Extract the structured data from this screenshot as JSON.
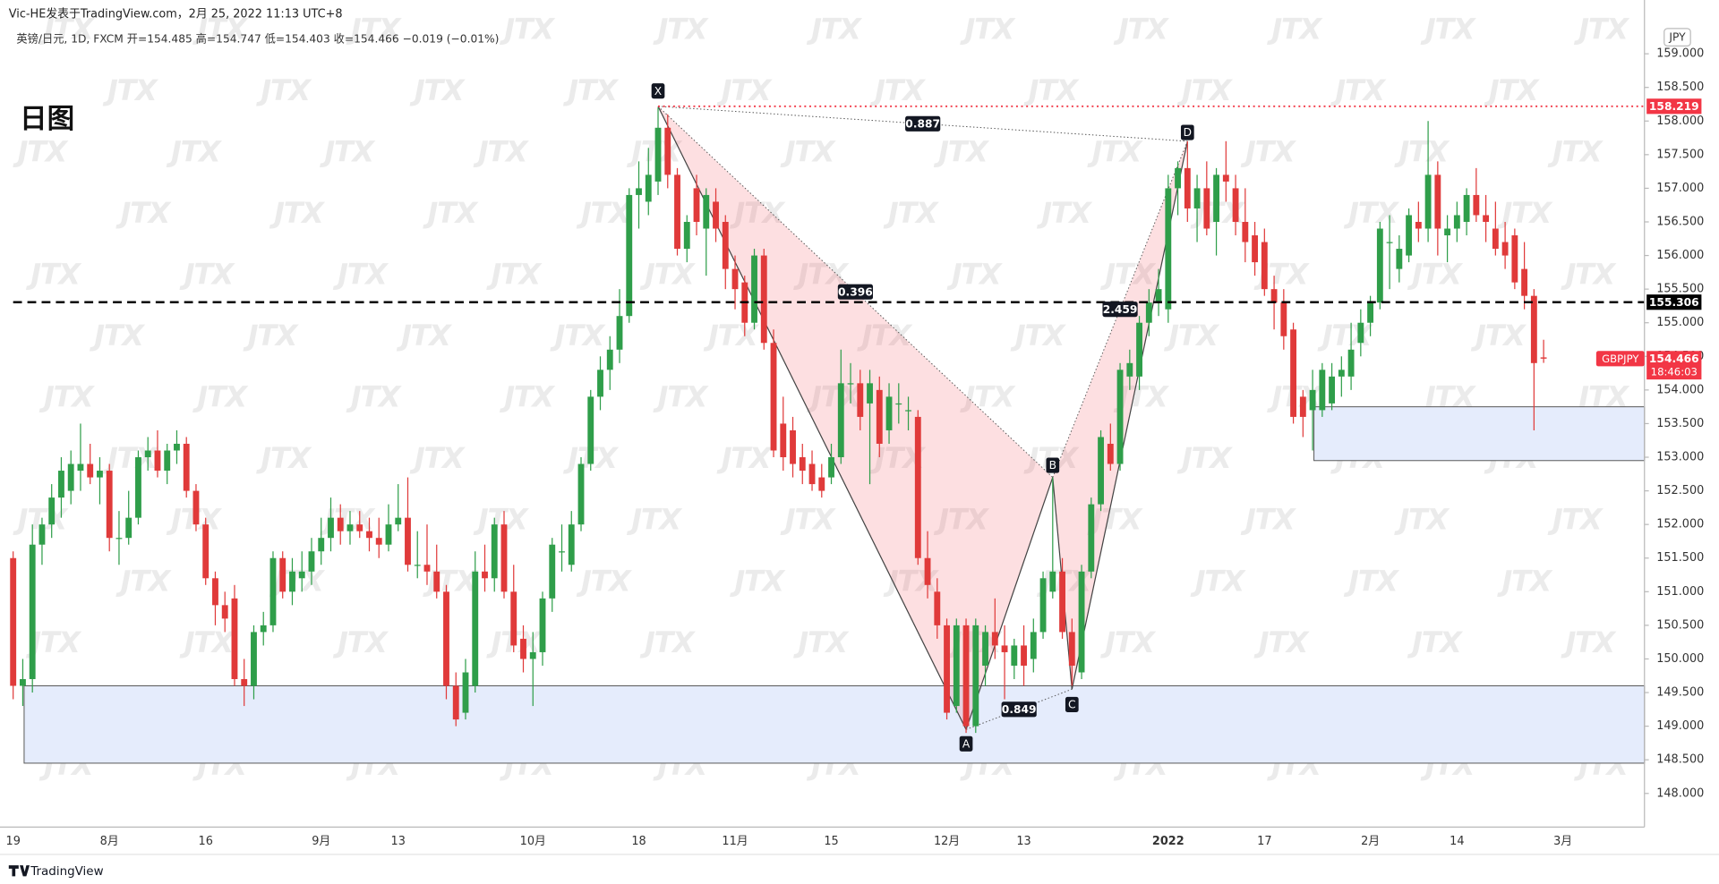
{
  "header": {
    "publisher": "Vic-HE发表于TradingView.com，2月 25, 2022 11:13 UTC+8",
    "legend": "英镑/日元, 1D, FXCM  开=154.485  高=154.747  低=154.403  收=154.466  −0.019 (−0.01%)",
    "footer": "TradingView"
  },
  "chart_data": {
    "type": "candlestick",
    "title": "日图",
    "currency": "JPY",
    "symbol": "GBPJPY",
    "watermark": "JTX",
    "up_color": "#2f9e4a",
    "down_color": "#e03a3a",
    "categories": [
      "19",
      null,
      null,
      null,
      null,
      null,
      null,
      null,
      null,
      null,
      "8月",
      null,
      null,
      null,
      null,
      null,
      null,
      null,
      null,
      null,
      "16",
      null,
      null,
      null,
      null,
      null,
      null,
      null,
      null,
      null,
      null,
      null,
      "9月",
      null,
      null,
      null,
      null,
      null,
      null,
      null,
      "13",
      null,
      null,
      null,
      null,
      null,
      null,
      null,
      null,
      null,
      null,
      null,
      null,
      null,
      "10月",
      null,
      null,
      null,
      null,
      null,
      null,
      null,
      null,
      null,
      null,
      "18",
      null,
      null,
      null,
      null,
      null,
      null,
      null,
      null,
      null,
      "11月",
      null,
      null,
      null,
      null,
      null,
      null,
      null,
      null,
      null,
      "15",
      null,
      null,
      null,
      null,
      null,
      null,
      null,
      null,
      null,
      null,
      null,
      "12月",
      null,
      null,
      null,
      null,
      null,
      null,
      null,
      "13",
      null,
      null,
      null,
      null,
      null,
      null,
      null,
      null,
      null,
      null,
      null,
      null,
      null,
      null,
      "2022",
      null,
      null,
      null,
      null,
      null,
      null,
      null,
      null,
      null,
      "17",
      null,
      null,
      null,
      null,
      null,
      null,
      null,
      null,
      null,
      null,
      "2月",
      null,
      null,
      null,
      null,
      null,
      null,
      null,
      null,
      "14",
      null,
      null,
      null,
      null,
      null,
      null,
      null,
      null,
      null,
      null,
      "3月"
    ],
    "open": [
      151.5,
      149.6,
      149.7,
      151.7,
      152.0,
      152.4,
      152.5,
      152.8,
      152.9,
      152.7,
      152.8,
      151.8,
      151.8,
      152.1,
      153.0,
      153.1,
      152.8,
      153.1,
      153.2,
      152.5,
      152.0,
      151.2,
      150.8,
      150.9,
      149.7,
      149.6,
      150.4,
      150.5,
      151.5,
      151.0,
      151.2,
      151.3,
      151.6,
      151.8,
      152.1,
      151.9,
      152.0,
      151.9,
      151.8,
      151.7,
      152.0,
      152.1,
      151.4,
      151.4,
      151.3,
      151.0,
      149.6,
      149.2,
      149.6,
      151.3,
      151.2,
      152.0,
      151.0,
      150.3,
      150.0,
      150.1,
      150.9,
      151.6,
      151.4,
      152.0,
      152.9,
      153.9,
      154.3,
      154.6,
      155.1,
      156.9,
      156.8,
      157.1,
      157.9,
      157.2,
      156.1,
      157.0,
      156.4,
      156.8,
      156.5,
      155.8,
      155.6,
      155.0,
      156.0,
      154.7,
      153.5,
      153.4,
      153.0,
      152.9,
      152.7,
      152.7,
      153.0,
      154.1,
      154.1,
      153.8,
      154.0,
      153.4,
      153.8,
      153.7,
      153.6,
      151.5,
      151.0,
      150.5,
      149.3,
      150.5,
      149.0,
      149.9,
      150.4,
      150.2,
      149.9,
      150.2,
      150.0,
      150.4,
      151.0,
      151.3,
      150.4,
      149.8,
      151.3,
      152.3,
      153.2,
      152.9,
      154.2,
      154.2,
      155.0,
      155.3,
      155.2,
      157.0,
      157.3,
      156.7,
      157.0,
      156.5,
      157.2,
      157.0,
      156.5,
      156.3,
      156.2,
      155.5,
      155.3,
      154.9,
      153.9,
      153.7,
      153.7,
      153.8,
      154.2,
      154.2,
      154.7,
      155.0,
      155.3,
      156.2,
      155.8,
      156.0,
      156.5,
      156.4,
      157.2,
      156.3,
      156.4,
      156.5,
      156.9,
      156.6,
      156.4,
      156.2,
      156.3,
      155.8,
      155.4,
      154.485,
      null,
      null
    ],
    "high": [
      151.6,
      150.0,
      152.0,
      152.1,
      152.6,
      153.0,
      153.1,
      153.5,
      153.2,
      153.0,
      152.9,
      152.2,
      152.5,
      153.1,
      153.3,
      153.4,
      153.2,
      153.4,
      153.3,
      152.6,
      152.1,
      151.3,
      151.0,
      151.1,
      150.0,
      150.5,
      150.7,
      151.6,
      151.6,
      151.5,
      151.6,
      151.8,
      152.1,
      152.4,
      152.3,
      152.2,
      152.2,
      152.1,
      152.1,
      152.3,
      152.6,
      152.7,
      151.9,
      152.0,
      151.7,
      151.1,
      149.8,
      150.0,
      151.6,
      151.7,
      152.1,
      152.2,
      151.4,
      150.5,
      150.4,
      151.0,
      151.8,
      152.0,
      152.2,
      153.0,
      154.0,
      154.5,
      154.8,
      155.5,
      157.0,
      157.4,
      157.6,
      158.2,
      158.1,
      157.3,
      156.6,
      157.2,
      157.0,
      157.0,
      156.6,
      156.0,
      155.7,
      156.1,
      156.1,
      154.9,
      153.9,
      153.6,
      153.2,
      153.1,
      152.9,
      153.2,
      154.6,
      154.4,
      154.3,
      154.3,
      154.2,
      154.1,
      154.1,
      153.9,
      153.7,
      151.9,
      151.2,
      150.6,
      150.6,
      150.6,
      150.6,
      150.5,
      150.9,
      150.5,
      150.3,
      150.5,
      150.6,
      151.3,
      152.7,
      151.5,
      150.6,
      151.4,
      152.4,
      153.4,
      153.5,
      154.4,
      154.6,
      155.1,
      155.5,
      155.8,
      157.2,
      157.4,
      157.7,
      157.2,
      157.4,
      157.3,
      157.7,
      157.2,
      157.0,
      156.5,
      156.4,
      155.7,
      155.5,
      155.0,
      154.0,
      154.3,
      154.4,
      154.4,
      154.5,
      155.0,
      155.2,
      155.4,
      156.5,
      156.6,
      156.3,
      156.7,
      156.8,
      158.0,
      157.4,
      156.6,
      156.8,
      157.0,
      157.3,
      156.9,
      156.8,
      156.5,
      156.4,
      156.2,
      155.5,
      154.747,
      null,
      null
    ],
    "low": [
      149.4,
      149.3,
      149.5,
      151.4,
      151.8,
      152.1,
      152.3,
      152.5,
      152.6,
      152.3,
      151.6,
      151.4,
      151.7,
      152.0,
      152.8,
      152.7,
      152.6,
      152.9,
      152.4,
      151.9,
      151.1,
      150.5,
      150.4,
      149.6,
      149.3,
      149.4,
      150.2,
      150.4,
      150.9,
      150.8,
      151.0,
      151.1,
      151.4,
      151.6,
      151.7,
      151.7,
      151.8,
      151.6,
      151.5,
      151.6,
      151.9,
      151.3,
      151.2,
      151.1,
      150.9,
      149.4,
      149.0,
      149.1,
      149.5,
      151.0,
      151.0,
      150.9,
      150.1,
      149.8,
      149.3,
      149.9,
      150.7,
      151.3,
      151.3,
      151.9,
      152.8,
      153.7,
      154.0,
      154.4,
      155.0,
      156.4,
      156.6,
      156.9,
      157.0,
      156.0,
      155.9,
      156.3,
      155.7,
      156.2,
      155.5,
      155.2,
      154.8,
      154.9,
      154.6,
      153.0,
      152.8,
      152.7,
      152.6,
      152.5,
      152.4,
      152.6,
      152.9,
      153.8,
      153.4,
      152.6,
      153.0,
      153.2,
      153.5,
      153.4,
      151.4,
      150.9,
      150.3,
      149.1,
      149.2,
      148.9,
      148.9,
      149.6,
      150.0,
      149.4,
      149.7,
      149.6,
      149.8,
      150.3,
      150.9,
      150.3,
      149.6,
      149.7,
      151.2,
      152.2,
      152.8,
      152.8,
      154.0,
      154.0,
      154.8,
      155.1,
      155.0,
      156.6,
      156.5,
      156.2,
      156.3,
      156.0,
      156.8,
      156.3,
      155.9,
      155.7,
      155.4,
      154.9,
      154.6,
      153.5,
      153.3,
      153.1,
      153.6,
      153.7,
      153.9,
      154.0,
      154.5,
      154.8,
      155.2,
      155.5,
      155.6,
      155.9,
      156.2,
      156.2,
      156.0,
      155.9,
      156.2,
      156.3,
      156.5,
      156.2,
      156.0,
      155.8,
      155.5,
      155.2,
      153.4,
      154.403,
      null,
      null
    ],
    "close": [
      149.6,
      149.7,
      151.7,
      152.0,
      152.4,
      152.8,
      152.9,
      152.9,
      152.7,
      152.8,
      151.8,
      151.8,
      152.1,
      153.0,
      153.1,
      152.8,
      153.1,
      153.2,
      152.5,
      152.0,
      151.2,
      150.8,
      150.6,
      149.7,
      149.6,
      150.4,
      150.5,
      151.5,
      151.0,
      151.3,
      151.3,
      151.6,
      151.8,
      152.1,
      151.9,
      152.0,
      151.9,
      151.8,
      151.7,
      152.0,
      152.1,
      151.4,
      151.4,
      151.3,
      151.0,
      149.6,
      149.1,
      149.8,
      151.3,
      151.2,
      152.0,
      151.0,
      150.2,
      150.0,
      150.1,
      150.9,
      151.7,
      151.6,
      152.0,
      152.9,
      153.9,
      154.3,
      154.6,
      155.1,
      156.9,
      157.0,
      157.2,
      157.9,
      157.2,
      156.1,
      156.5,
      156.5,
      156.9,
      156.4,
      155.8,
      155.5,
      155.0,
      156.0,
      154.7,
      153.1,
      153.0,
      152.9,
      152.8,
      152.6,
      152.5,
      153.0,
      154.1,
      154.1,
      153.6,
      154.1,
      153.2,
      153.9,
      153.8,
      153.7,
      151.5,
      151.1,
      150.5,
      149.2,
      150.5,
      149.0,
      150.5,
      150.4,
      150.2,
      150.1,
      150.2,
      149.9,
      150.4,
      151.2,
      151.3,
      150.4,
      149.9,
      151.3,
      152.3,
      153.3,
      152.9,
      154.3,
      154.4,
      155.0,
      155.3,
      155.5,
      157.0,
      157.3,
      156.7,
      157.0,
      156.4,
      157.2,
      157.1,
      156.5,
      156.2,
      155.9,
      155.5,
      155.3,
      154.8,
      153.6,
      153.6,
      154.0,
      154.3,
      154.2,
      154.3,
      154.6,
      155.0,
      155.3,
      156.4,
      156.2,
      156.1,
      156.6,
      156.4,
      157.2,
      156.4,
      156.4,
      156.6,
      156.9,
      156.6,
      156.5,
      156.1,
      156.0,
      155.6,
      155.4,
      154.4,
      154.466,
      null,
      null
    ],
    "ylim": [
      147.5,
      159.8
    ],
    "yticks": [
      {
        "value": 148,
        "label": "148.000"
      },
      {
        "value": 148.5,
        "label": "148.500"
      },
      {
        "value": 149,
        "label": "149.000"
      },
      {
        "value": 149.5,
        "label": "149.500"
      },
      {
        "value": 150,
        "label": "150.000"
      },
      {
        "value": 150.5,
        "label": "150.500"
      },
      {
        "value": 151,
        "label": "151.000"
      },
      {
        "value": 151.5,
        "label": "151.500"
      },
      {
        "value": 152,
        "label": "152.000"
      },
      {
        "value": 152.5,
        "label": "152.500"
      },
      {
        "value": 153,
        "label": "153.000"
      },
      {
        "value": 153.5,
        "label": "153.500"
      },
      {
        "value": 154,
        "label": "154.000"
      },
      {
        "value": 154.5,
        "label": "154.500"
      },
      {
        "value": 155,
        "label": "155.000"
      },
      {
        "value": 155.5,
        "label": "155.500"
      },
      {
        "value": 156,
        "label": "156.000"
      },
      {
        "value": 156.5,
        "label": "156.500"
      },
      {
        "value": 157,
        "label": "157.000"
      },
      {
        "value": 157.5,
        "label": "157.500"
      },
      {
        "value": 158,
        "label": "158.000"
      },
      {
        "value": 158.5,
        "label": "158.500"
      },
      {
        "value": 159,
        "label": "159.000"
      }
    ],
    "grid": false,
    "levels": [
      {
        "value": 158.219,
        "color": "#f23645",
        "style": "dotted",
        "from_index": 67
      },
      {
        "value": 155.306,
        "color": "#000000",
        "style": "dashed",
        "from_index": 0
      }
    ],
    "zones": [
      {
        "low": 148.45,
        "high": 149.6,
        "from_index": 1
      },
      {
        "low": 152.95,
        "high": 153.75,
        "from_index": 135
      }
    ],
    "pattern": {
      "points": [
        {
          "label": "X",
          "index": 67,
          "value": 158.219
        },
        {
          "label": "A",
          "index": 99,
          "value": 148.95
        },
        {
          "label": "B",
          "index": 108,
          "value": 152.7
        },
        {
          "label": "C",
          "index": 110,
          "value": 149.55
        },
        {
          "label": "D",
          "index": 122,
          "value": 157.7
        }
      ],
      "ratios": [
        {
          "value": 0.887,
          "legs": [
            0,
            4
          ]
        },
        {
          "value": 0.396,
          "legs": [
            0,
            2
          ]
        },
        {
          "value": 0.849,
          "legs": [
            1,
            3
          ]
        },
        {
          "value": 2.459,
          "legs": [
            2,
            4
          ]
        }
      ]
    },
    "last_price": {
      "value": 154.466,
      "countdown": "18:46:03",
      "color": "#f23645"
    }
  }
}
